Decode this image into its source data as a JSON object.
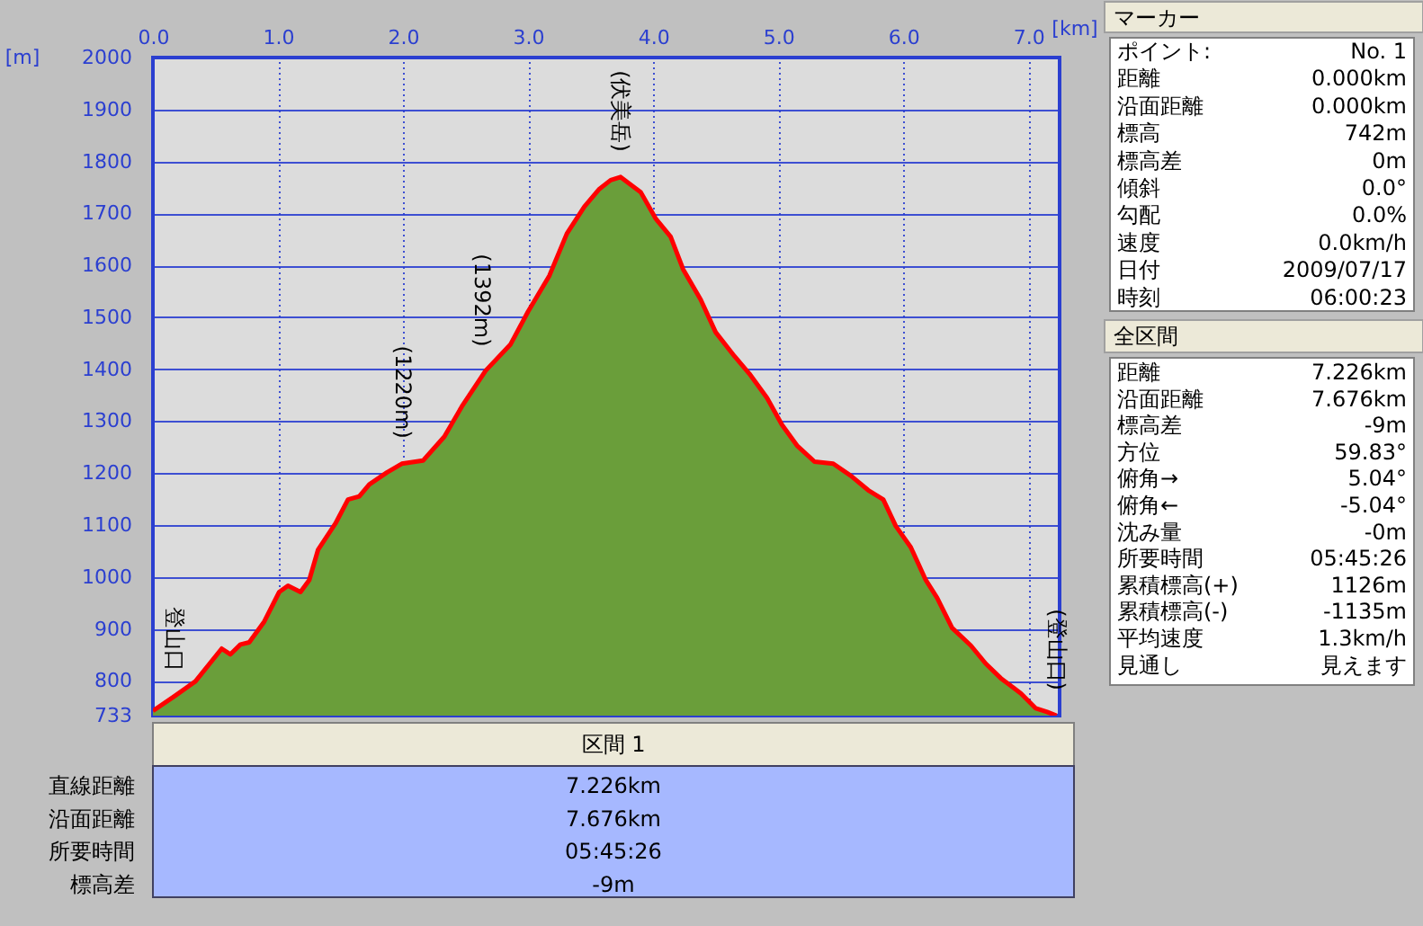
{
  "chart_data": {
    "type": "area",
    "xlabel": "[km]",
    "ylabel": "[m]",
    "x": [
      0,
      0.17,
      0.34,
      0.55,
      0.62,
      0.7,
      0.77,
      0.89,
      1.01,
      1.08,
      1.18,
      1.25,
      1.32,
      1.46,
      1.56,
      1.65,
      1.73,
      1.87,
      1.99,
      2.16,
      2.33,
      2.47,
      2.66,
      2.86,
      3.0,
      3.17,
      3.31,
      3.45,
      3.57,
      3.66,
      3.74,
      3.9,
      4.02,
      4.14,
      4.24,
      4.38,
      4.5,
      4.65,
      4.77,
      4.91,
      5.03,
      5.15,
      5.29,
      5.44,
      5.58,
      5.72,
      5.84,
      5.94,
      6.06,
      6.18,
      6.27,
      6.39,
      6.54,
      6.66,
      6.78,
      6.94,
      7.06,
      7.15,
      7.226
    ],
    "series": [
      {
        "color": "#6a9e3a",
        "values": [
          742,
          770,
          799,
          862,
          851,
          870,
          874,
          914,
          971,
          983,
          971,
          994,
          1052,
          1103,
          1149,
          1155,
          1178,
          1201,
          1218,
          1224,
          1270,
          1328,
          1397,
          1448,
          1511,
          1580,
          1661,
          1713,
          1747,
          1764,
          1770,
          1741,
          1690,
          1655,
          1592,
          1534,
          1471,
          1425,
          1391,
          1345,
          1293,
          1253,
          1222,
          1218,
          1195,
          1167,
          1149,
          1098,
          1057,
          994,
          960,
          902,
          868,
          833,
          805,
          776,
          747,
          740,
          733
        ]
      }
    ],
    "xlim": [
      0,
      7.25
    ],
    "xticks": [
      {
        "value": 0,
        "label": "0.0"
      },
      {
        "value": 1,
        "label": "1.0"
      },
      {
        "value": 2,
        "label": "2.0"
      },
      {
        "value": 3,
        "label": "3.0"
      },
      {
        "value": 4,
        "label": "4.0"
      },
      {
        "value": 5,
        "label": "5.0"
      },
      {
        "value": 6,
        "label": "6.0"
      },
      {
        "value": 7,
        "label": "7.0"
      }
    ],
    "ylim": [
      733,
      2000
    ],
    "yticks": [
      733,
      800,
      900,
      1000,
      1100,
      1200,
      1300,
      1400,
      1500,
      1600,
      1700,
      1800,
      1900,
      2000
    ],
    "grid": true,
    "annotations": [
      {
        "text": "登山口",
        "x": 0.17,
        "y": 770
      },
      {
        "text": "(1220m)",
        "x": 2.0,
        "y": 1218
      },
      {
        "text": "(1392m)",
        "x": 2.63,
        "y": 1395
      },
      {
        "text": "(伏美岳)",
        "x": 3.74,
        "y": 1770
      },
      {
        "text": "(登山口)",
        "x": 7.226,
        "y": 733
      },
      "マーカー",
      "ポイント:",
      "No. 1",
      "距離",
      "0.000km",
      "沿面距離",
      "0.000km",
      "標高",
      "742m",
      "標高差",
      "0m",
      "傾斜",
      "0.0°",
      "勾配",
      "0.0%",
      "速度",
      "0.0km/h",
      "日付",
      "2009/07/17",
      "時刻",
      "06:00:23",
      "全区間",
      "距離",
      "7.226km",
      "沿面距離",
      "7.676km",
      "標高差",
      "-9m",
      "方位",
      "59.83°",
      "俯角→",
      "5.04°",
      "俯角←",
      "-5.04°",
      "沈み量",
      "-0m",
      "所要時間",
      "05:45:26",
      "累積標高(+)",
      "1126m",
      "累積標高(-)",
      "-1135m",
      "平均速度",
      "1.3km/h",
      "見通し",
      "見えます",
      "区間 1",
      "直線距離",
      "7.226km",
      "沿面距離",
      "7.676km",
      "所要時間",
      "05:45:26",
      "標高差",
      "-9m"
    ]
  }
}
